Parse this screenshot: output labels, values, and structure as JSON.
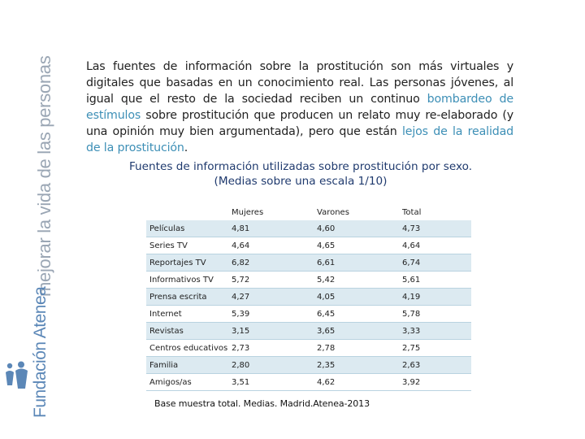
{
  "sidebar": {
    "tagline": "mejorar la vida de las personas",
    "brand": "Fundación Atenea"
  },
  "intro": {
    "part1": "Las fuentes de información sobre la prostitución son más virtuales y digitales que basadas en un conocimiento real. Las personas jóvenes, al igual que el resto de la sociedad reciben un continuo ",
    "highlight1": "bombardeo de estímulos",
    "part2": " sobre prostitución que producen un relato muy re-elaborado (y una opinión muy bien argumentada), pero que están ",
    "highlight2": "lejos de la realidad de la prostitución",
    "part3": "."
  },
  "table": {
    "title_line1": "Fuentes de información utilizadas sobre prostitución por sexo.",
    "title_line2": "(Medias sobre una escala 1/10)",
    "headers": {
      "label": "",
      "mujeres": "Mujeres",
      "varones": "Varones",
      "total": "Total"
    },
    "rows": [
      {
        "label": "Películas",
        "mujeres": "4,81",
        "varones": "4,60",
        "total": "4,73"
      },
      {
        "label": "Series TV",
        "mujeres": "4,64",
        "varones": "4,65",
        "total": "4,64"
      },
      {
        "label": "Reportajes TV",
        "mujeres": "6,82",
        "varones": "6,61",
        "total": "6,74"
      },
      {
        "label": "Informativos TV",
        "mujeres": "5,72",
        "varones": "5,42",
        "total": "5,61"
      },
      {
        "label": "Prensa escrita",
        "mujeres": "4,27",
        "varones": "4,05",
        "total": "4,19"
      },
      {
        "label": "Internet",
        "mujeres": "5,39",
        "varones": "6,45",
        "total": "5,78"
      },
      {
        "label": "Revistas",
        "mujeres": "3,15",
        "varones": "3,65",
        "total": "3,33"
      },
      {
        "label": "Centros educativos",
        "mujeres": "2,73",
        "varones": "2,78",
        "total": "2,75"
      },
      {
        "label": "Familia",
        "mujeres": "2,80",
        "varones": "2,35",
        "total": "2,63"
      },
      {
        "label": "Amigos/as",
        "mujeres": "3,51",
        "varones": "4,62",
        "total": "3,92"
      }
    ],
    "footnote": "Base muestra total. Medias. Madrid.Atenea-2013"
  },
  "colors": {
    "highlight": "#3d8fb6",
    "title": "#1f3a6e",
    "row_stripe": "#dceaf1",
    "brand": "#5b87b7",
    "tagline": "#9aa6b4"
  }
}
